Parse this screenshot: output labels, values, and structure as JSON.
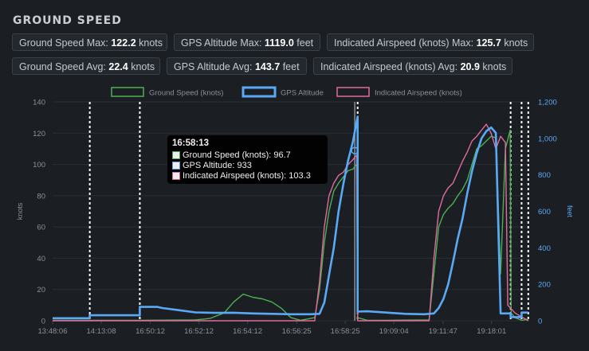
{
  "panel": {
    "title": "GROUND SPEED"
  },
  "stats": [
    {
      "label": "Ground Speed Max:",
      "value": "122.2",
      "unit": "knots"
    },
    {
      "label": "GPS Altitude Max:",
      "value": "1119.0",
      "unit": "feet"
    },
    {
      "label": "Indicated Airspeed (knots) Max:",
      "value": "125.7",
      "unit": "knots"
    },
    {
      "label": "Ground Speed Avg:",
      "value": "22.4",
      "unit": "knots"
    },
    {
      "label": "GPS Altitude Avg:",
      "value": "143.7",
      "unit": "feet"
    },
    {
      "label": "Indicated Airspeed (knots) Avg:",
      "value": "20.9",
      "unit": "knots"
    }
  ],
  "tooltip": {
    "time": "16:58:13",
    "rows": [
      {
        "label": "Ground Speed (knots): 96.7",
        "color": "#4caf50"
      },
      {
        "label": "GPS Altitude: 933",
        "color": "#5aa9f5"
      },
      {
        "label": "Indicated Airspeed (knots): 103.3",
        "color": "#e06aa0"
      }
    ]
  },
  "chart_data": {
    "type": "line",
    "legend_position": "top-center",
    "colors": {
      "ground_speed": "#4caf50",
      "gps_altitude": "#5aa9f5",
      "indicated_airspeed": "#e06aa0",
      "axis_text": "#8a9099",
      "right_axis_text": "#5aa9f5",
      "grid": "#2a2f36"
    },
    "ylabel": "knots",
    "y2label": "feet",
    "ylim": [
      0,
      140
    ],
    "y2lim": [
      0,
      1200
    ],
    "yticks": [
      0,
      20,
      40,
      60,
      80,
      100,
      120,
      140
    ],
    "y2ticks": [
      "0",
      "200",
      "400",
      "600",
      "800",
      "1,000",
      "1,200"
    ],
    "y2tick_values": [
      0,
      200,
      400,
      600,
      800,
      1000,
      1200
    ],
    "xlim": [
      0,
      100
    ],
    "xticks": [
      {
        "label": "13:48:06",
        "x": 0
      },
      {
        "label": "14:13:08",
        "x": 10.2
      },
      {
        "label": "16:50:12",
        "x": 20.5
      },
      {
        "label": "16:52:12",
        "x": 30.7
      },
      {
        "label": "16:54:12",
        "x": 40.9
      },
      {
        "label": "16:56:25",
        "x": 51.2
      },
      {
        "label": "16:58:25",
        "x": 61.4
      },
      {
        "label": "19:09:04",
        "x": 71.6
      },
      {
        "label": "19:11:47",
        "x": 81.9
      },
      {
        "label": "19:18:01",
        "x": 92.1
      }
    ],
    "segment_breaks": [
      7.8,
      18.3,
      64.0,
      96.1,
      98.4,
      99.8
    ],
    "cursor_x": 63.4,
    "series": [
      {
        "name": "Ground Speed (knots)",
        "color_key": "ground_speed",
        "points": [
          [
            0,
            0.3
          ],
          [
            7.8,
            0.3
          ],
          [
            18.3,
            0.3
          ],
          [
            30,
            0.5
          ],
          [
            33,
            1.5
          ],
          [
            36,
            5
          ],
          [
            38,
            12
          ],
          [
            40,
            17
          ],
          [
            42,
            15
          ],
          [
            44,
            14
          ],
          [
            46,
            12
          ],
          [
            48,
            8
          ],
          [
            50,
            2
          ],
          [
            52,
            0.3
          ],
          [
            55,
            2
          ],
          [
            56,
            20
          ],
          [
            57,
            50
          ],
          [
            58,
            70
          ],
          [
            59,
            83
          ],
          [
            60,
            88
          ],
          [
            61,
            92
          ],
          [
            62,
            96
          ],
          [
            63,
            97
          ],
          [
            63.8,
            100
          ],
          [
            64,
            2
          ],
          [
            66,
            0.3
          ],
          [
            70,
            0.3
          ],
          [
            79,
            0.5
          ],
          [
            80,
            30
          ],
          [
            81,
            60
          ],
          [
            82,
            68
          ],
          [
            83,
            72
          ],
          [
            84,
            75
          ],
          [
            85,
            80
          ],
          [
            86,
            84
          ],
          [
            87,
            90
          ],
          [
            88,
            100
          ],
          [
            89,
            110
          ],
          [
            90,
            112
          ],
          [
            91,
            115
          ],
          [
            92,
            118
          ],
          [
            93,
            117
          ],
          [
            94,
            30
          ],
          [
            95,
            110
          ],
          [
            96,
            122
          ],
          [
            96.2,
            5
          ],
          [
            97,
            2
          ],
          [
            98.4,
            0.3
          ],
          [
            99.8,
            1
          ]
        ]
      },
      {
        "name": "GPS Altitude",
        "color_key": "gps_altitude",
        "points": [
          [
            0,
            14
          ],
          [
            7.8,
            14
          ],
          [
            7.8,
            30
          ],
          [
            18.3,
            30
          ],
          [
            18.3,
            76
          ],
          [
            22,
            76
          ],
          [
            23,
            70
          ],
          [
            26,
            60
          ],
          [
            30,
            46
          ],
          [
            34,
            43
          ],
          [
            38,
            44
          ],
          [
            42,
            40
          ],
          [
            46,
            38
          ],
          [
            50,
            36
          ],
          [
            54,
            36
          ],
          [
            56,
            38
          ],
          [
            57,
            100
          ],
          [
            58,
            250
          ],
          [
            59,
            400
          ],
          [
            60,
            600
          ],
          [
            61,
            750
          ],
          [
            62,
            880
          ],
          [
            63,
            980
          ],
          [
            63.5,
            1050
          ],
          [
            64,
            1119
          ],
          [
            64,
            50
          ],
          [
            66,
            52
          ],
          [
            70,
            45
          ],
          [
            74,
            38
          ],
          [
            78,
            36
          ],
          [
            80,
            40
          ],
          [
            81,
            70
          ],
          [
            82,
            120
          ],
          [
            83,
            200
          ],
          [
            84,
            320
          ],
          [
            85,
            450
          ],
          [
            86,
            560
          ],
          [
            87,
            700
          ],
          [
            88,
            820
          ],
          [
            89,
            920
          ],
          [
            90,
            1000
          ],
          [
            91,
            1040
          ],
          [
            92,
            1060
          ],
          [
            93,
            1030
          ],
          [
            94,
            40
          ],
          [
            96.1,
            40
          ],
          [
            96.1,
            20
          ],
          [
            98.4,
            20
          ],
          [
            98.4,
            45
          ],
          [
            99.8,
            45
          ]
        ]
      },
      {
        "name": "Indicated Airspeed (knots)",
        "color_key": "indicated_airspeed",
        "points": [
          [
            0,
            0
          ],
          [
            55,
            0
          ],
          [
            56,
            25
          ],
          [
            57,
            60
          ],
          [
            58,
            80
          ],
          [
            59,
            88
          ],
          [
            60,
            93
          ],
          [
            61,
            95
          ],
          [
            62,
            100
          ],
          [
            63,
            103
          ],
          [
            63.8,
            106
          ],
          [
            64,
            0
          ],
          [
            79,
            0
          ],
          [
            80,
            40
          ],
          [
            81,
            70
          ],
          [
            82,
            80
          ],
          [
            83,
            85
          ],
          [
            84,
            88
          ],
          [
            85,
            95
          ],
          [
            86,
            102
          ],
          [
            87,
            108
          ],
          [
            88,
            115
          ],
          [
            89,
            118
          ],
          [
            90,
            122
          ],
          [
            91,
            125.7
          ],
          [
            92,
            120
          ],
          [
            93,
            110
          ],
          [
            94,
            118
          ],
          [
            95,
            114
          ],
          [
            95.5,
            10
          ],
          [
            97,
            5
          ],
          [
            99.8,
            0
          ]
        ]
      }
    ]
  }
}
